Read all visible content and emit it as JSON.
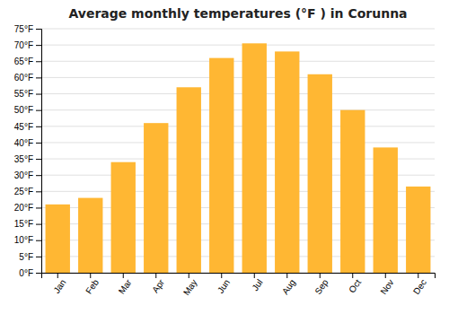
{
  "chart_data": {
    "type": "bar",
    "title": "Average monthly temperatures (°F ) in Corunna",
    "categories": [
      "Jan",
      "Feb",
      "Mar",
      "Apr",
      "May",
      "Jun",
      "Jul",
      "Aug",
      "Sep",
      "Oct",
      "Nov",
      "Dec"
    ],
    "values": [
      21,
      23,
      34,
      46,
      57,
      66,
      70.5,
      68,
      61,
      50,
      38.5,
      26.5
    ],
    "color": "#FFB733",
    "ylim": [
      0,
      75
    ],
    "yticks": [
      {
        "value": 0,
        "label": "0°F"
      },
      {
        "value": 5,
        "label": "5°F"
      },
      {
        "value": 10,
        "label": "10°F"
      },
      {
        "value": 15,
        "label": "15°F"
      },
      {
        "value": 20,
        "label": "20°F"
      },
      {
        "value": 25,
        "label": "25°F"
      },
      {
        "value": 30,
        "label": "30°F"
      },
      {
        "value": 35,
        "label": "35°F"
      },
      {
        "value": 40,
        "label": "40°F"
      },
      {
        "value": 45,
        "label": "45°F"
      },
      {
        "value": 50,
        "label": "50°F"
      },
      {
        "value": 55,
        "label": "55°F"
      },
      {
        "value": 60,
        "label": "60°F"
      },
      {
        "value": 65,
        "label": "65°F"
      },
      {
        "value": 70,
        "label": "70°F"
      },
      {
        "value": 75,
        "label": "75°F"
      }
    ],
    "grid": true
  }
}
